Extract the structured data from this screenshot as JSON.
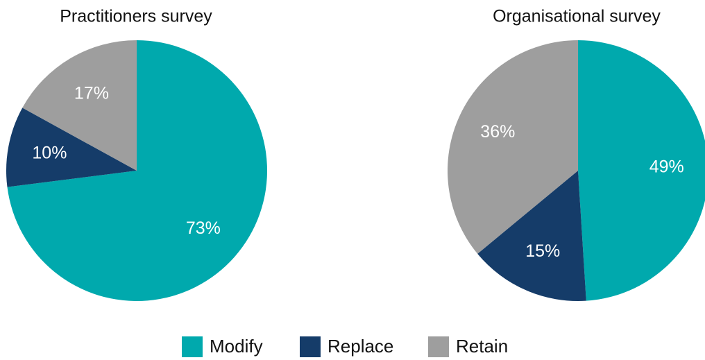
{
  "chart_data": [
    {
      "type": "pie",
      "title": "Practitioners survey",
      "categories": [
        "Modify",
        "Replace",
        "Retain"
      ],
      "values": [
        73,
        10,
        17
      ],
      "value_labels": [
        "73%",
        "10%",
        "17%"
      ],
      "colors": [
        "#00a9ad",
        "#153c69",
        "#9e9e9e"
      ],
      "legend": "bottom"
    },
    {
      "type": "pie",
      "title": "Organisational survey",
      "categories": [
        "Modify",
        "Replace",
        "Retain"
      ],
      "values": [
        49,
        15,
        36
      ],
      "value_labels": [
        "49%",
        "15%",
        "36%"
      ],
      "colors": [
        "#00a9ad",
        "#153c69",
        "#9e9e9e"
      ],
      "legend": "bottom"
    }
  ]
}
